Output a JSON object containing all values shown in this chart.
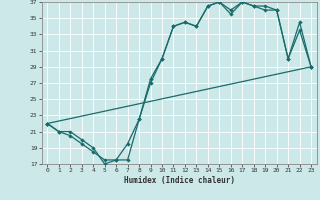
{
  "xlabel": "Humidex (Indice chaleur)",
  "xlim": [
    -0.5,
    23.5
  ],
  "ylim": [
    17,
    37
  ],
  "xticks": [
    0,
    1,
    2,
    3,
    4,
    5,
    6,
    7,
    8,
    9,
    10,
    11,
    12,
    13,
    14,
    15,
    16,
    17,
    18,
    19,
    20,
    21,
    22,
    23
  ],
  "yticks": [
    17,
    19,
    21,
    23,
    25,
    27,
    29,
    31,
    33,
    35,
    37
  ],
  "bg_color": "#cce8e8",
  "line_color": "#1a6b6b",
  "grid_color": "#b0d8d8",
  "line1_x": [
    0,
    1,
    2,
    3,
    4,
    5,
    6,
    7,
    8,
    9,
    10,
    11,
    12,
    13,
    14,
    15,
    16,
    17,
    18,
    19,
    20,
    21,
    22,
    23
  ],
  "line1_y": [
    22,
    21,
    21,
    20,
    19,
    17,
    17.5,
    19.5,
    22.5,
    27.5,
    30,
    34,
    34.5,
    34,
    36.5,
    37,
    36,
    37,
    36.5,
    36.5,
    36,
    30,
    34.5,
    29
  ],
  "line2_x": [
    0,
    1,
    2,
    3,
    4,
    5,
    6,
    7,
    8,
    9,
    10,
    11,
    12,
    13,
    14,
    15,
    16,
    17,
    18,
    19,
    20,
    21,
    22,
    23
  ],
  "line2_y": [
    22,
    21,
    20.5,
    19.5,
    18.5,
    17.5,
    17.5,
    17.5,
    22.5,
    27,
    30,
    34,
    34.5,
    34,
    36.5,
    37,
    35.5,
    37,
    36.5,
    36,
    36,
    30,
    33.5,
    29
  ],
  "line3_x": [
    0,
    23
  ],
  "line3_y": [
    22,
    29
  ]
}
